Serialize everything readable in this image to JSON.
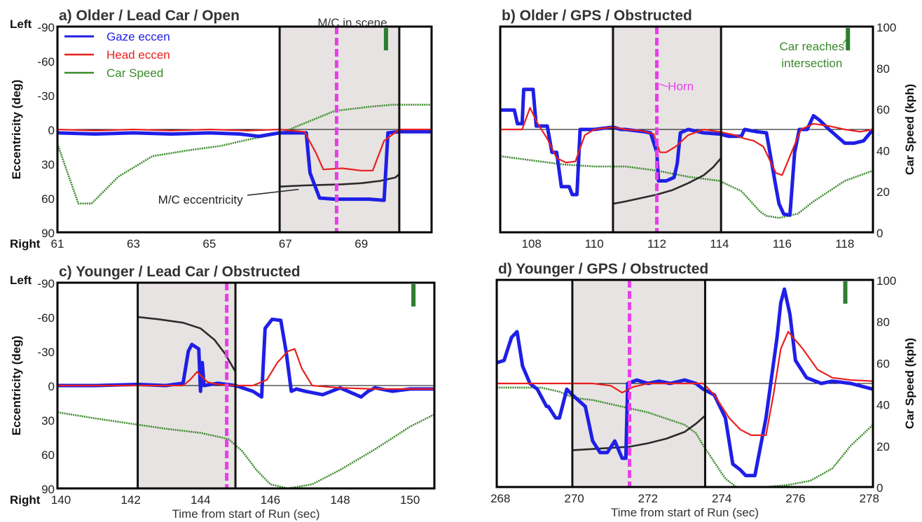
{
  "chart_data": [
    {
      "type": "line",
      "title": "a) Older / Lead Car / Open",
      "xlabel": "",
      "ylabel": "Eccentricity (deg)",
      "y2label": "",
      "y_top_label": "Left",
      "y_bottom_label": "Right",
      "xlim": [
        61,
        70.85
      ],
      "ylim_ecc": [
        -90,
        90
      ],
      "y_reversed": true,
      "y2lim": [
        0,
        100
      ],
      "xticks": [
        61,
        63,
        65,
        67,
        69
      ],
      "yticks": [
        -90,
        -60,
        -30,
        0,
        30,
        60,
        90
      ],
      "y2ticks": [],
      "shaded_region": [
        66.85,
        70.0
      ],
      "event_line_x": 68.35,
      "marker_x": 69.65,
      "series": [
        {
          "name": "Gaze eccen",
          "x": [
            61,
            62,
            63,
            64,
            65,
            65.8,
            66.3,
            66.85,
            67.55,
            67.65,
            67.9,
            68.3,
            68.6,
            69.2,
            69.6,
            69.7,
            70.0,
            70.85
          ],
          "y": [
            3,
            4,
            3,
            4,
            3,
            4,
            6,
            3,
            3,
            38,
            60,
            61,
            61,
            61,
            62,
            3,
            2,
            2
          ]
        },
        {
          "name": "Head eccen",
          "x": [
            61,
            62,
            63,
            64,
            65,
            66,
            66.85,
            67.5,
            67.8,
            68.0,
            68.5,
            69.0,
            69.3,
            69.6,
            70.0,
            70.85
          ],
          "y": [
            0,
            1,
            0,
            1,
            0,
            1,
            0,
            2,
            20,
            35,
            34,
            36,
            36,
            10,
            0,
            0
          ]
        },
        {
          "name": "Car Speed",
          "x": [
            61,
            61.55,
            61.9,
            62.6,
            63.5,
            64.5,
            65.3,
            66,
            66.85,
            67.5,
            68.3,
            69.2,
            69.8,
            70.85
          ],
          "y": [
            43,
            14,
            14,
            27,
            37,
            40,
            42,
            45,
            48,
            53,
            59,
            61,
            62,
            62
          ]
        },
        {
          "name": "M/C eccentricity",
          "x": [
            66.85,
            67.5,
            68,
            68.5,
            69,
            69.5,
            69.9,
            70.0
          ],
          "y": [
            50,
            49,
            48.5,
            48,
            47,
            45,
            42,
            39
          ]
        }
      ],
      "annotations": [
        "M/C in scene",
        "M/C eccentricity"
      ]
    },
    {
      "type": "line",
      "title": "b) Older / GPS / Obstructed",
      "xlabel": "",
      "ylabel": "",
      "y2label": "Car Speed (kph)",
      "y_top_label": "",
      "y_bottom_label": "",
      "xlim": [
        107.0,
        118.9
      ],
      "ylim_ecc": [
        -90,
        90
      ],
      "y_reversed": true,
      "y2lim": [
        0,
        100
      ],
      "xticks": [
        108,
        110,
        112,
        114,
        116,
        118
      ],
      "yticks": [],
      "y2ticks": [
        0,
        20,
        40,
        60,
        80,
        100
      ],
      "shaded_region": [
        110.6,
        114.05
      ],
      "event_line_x": 112.0,
      "marker_x": 118.1,
      "series": [
        {
          "name": "Gaze eccen",
          "x": [
            107,
            107.45,
            107.55,
            107.7,
            107.75,
            108.05,
            108.15,
            108.5,
            108.65,
            108.8,
            108.95,
            109.2,
            109.3,
            109.45,
            109.55,
            110.0,
            110.6,
            110.85,
            111.0,
            111.6,
            111.8,
            112.0,
            112.05,
            112.3,
            112.55,
            112.65,
            112.75,
            113.0,
            113.5,
            114.0,
            114.3,
            114.7,
            114.8,
            115.2,
            115.5,
            115.8,
            115.9,
            116.05,
            116.25,
            116.4,
            116.55,
            116.8,
            117.0,
            117.2,
            117.5,
            118.0,
            118.3,
            118.6,
            118.9
          ],
          "y": [
            -17,
            -17,
            -5,
            -5,
            -35,
            -35,
            -3,
            -3,
            20,
            20,
            50,
            50,
            57,
            57,
            0,
            0,
            -2,
            0,
            0,
            2,
            3,
            20,
            45,
            45,
            42,
            30,
            3,
            0,
            3,
            4,
            6,
            6,
            0,
            2,
            3,
            50,
            65,
            74,
            75,
            20,
            0,
            0,
            -12,
            -8,
            0,
            12,
            12,
            10,
            0
          ]
        },
        {
          "name": "Head eccen",
          "x": [
            107,
            107.7,
            107.95,
            108.2,
            108.5,
            108.8,
            109.1,
            109.4,
            109.7,
            110.0,
            110.6,
            111.0,
            111.5,
            111.9,
            112.1,
            112.3,
            112.6,
            113.0,
            113.5,
            114.0,
            114.5,
            114.8,
            115.1,
            115.4,
            115.8,
            116.0,
            116.3,
            116.6,
            117.0,
            117.5,
            118.0,
            118.5,
            118.9
          ],
          "y": [
            0,
            0,
            -19,
            -5,
            8,
            25,
            29,
            28,
            5,
            0,
            -2,
            0,
            1,
            4,
            20,
            20,
            15,
            5,
            0,
            2,
            5,
            8,
            10,
            15,
            38,
            40,
            20,
            0,
            -5,
            -3,
            0,
            2,
            0
          ]
        },
        {
          "name": "Car Speed",
          "x": [
            107,
            108,
            109,
            110,
            111,
            112,
            113,
            114,
            114.7,
            115.0,
            115.3,
            115.5,
            115.9,
            116.5,
            117.0,
            118.0,
            118.9
          ],
          "y": [
            37,
            35,
            33,
            32,
            32,
            30,
            27,
            25,
            20,
            15,
            10,
            8,
            7,
            9,
            15,
            25,
            30
          ]
        },
        {
          "name": "M/C eccentricity",
          "x": [
            110.6,
            111.0,
            111.5,
            112.0,
            112.5,
            113.0,
            113.5,
            113.8,
            114.05
          ],
          "y": [
            65,
            63,
            60,
            57,
            53,
            47,
            40,
            33,
            25
          ]
        }
      ],
      "annotations": [
        "Horn",
        "Car reaches intersection"
      ]
    },
    {
      "type": "line",
      "title": "c) Younger / Lead Car / Obstructed",
      "xlabel": "Time from start of Run (sec)",
      "ylabel": "Eccentricity (deg)",
      "y2label": "",
      "y_top_label": "Left",
      "y_bottom_label": "Right",
      "xlim": [
        139.9,
        150.7
      ],
      "ylim_ecc": [
        -90,
        90
      ],
      "y_reversed": true,
      "y2lim": [
        0,
        100
      ],
      "xticks": [
        140,
        142,
        144,
        146,
        148,
        150
      ],
      "yticks": [
        -90,
        -60,
        -30,
        0,
        30,
        60,
        90
      ],
      "y2ticks": [],
      "shaded_region": [
        142.2,
        145.0
      ],
      "event_line_x": 144.75,
      "marker_x": 150.1,
      "series": [
        {
          "name": "Gaze eccen",
          "x": [
            139.9,
            141,
            142.2,
            143.0,
            143.5,
            143.65,
            143.75,
            143.95,
            144.0,
            144.05,
            144.1,
            144.5,
            145.0,
            145.5,
            145.75,
            145.85,
            146.05,
            146.3,
            146.45,
            146.6,
            146.75,
            147.0,
            147.5,
            148.0,
            148.6,
            148.8,
            149.0,
            149.5,
            150.0,
            150.7
          ],
          "y": [
            0,
            0,
            -1,
            0,
            -2,
            -30,
            -36,
            -32,
            5,
            -20,
            0,
            -2,
            0,
            5,
            10,
            -50,
            -58,
            -57,
            -30,
            5,
            3,
            5,
            8,
            2,
            10,
            5,
            2,
            5,
            3,
            3
          ]
        },
        {
          "name": "Head eccen",
          "x": [
            139.9,
            141,
            142.2,
            143.0,
            143.5,
            143.7,
            143.9,
            144.2,
            144.5,
            145.0,
            145.5,
            145.9,
            146.2,
            146.5,
            146.7,
            146.9,
            147.2,
            148.0,
            149.0,
            150.7
          ],
          "y": [
            0,
            0,
            0,
            0,
            0,
            -5,
            -12,
            -3,
            -1,
            0,
            0,
            -5,
            -20,
            -30,
            -32,
            -15,
            0,
            2,
            3,
            3
          ]
        },
        {
          "name": "Car Speed",
          "x": [
            139.9,
            141,
            142.2,
            143,
            144,
            144.8,
            145.2,
            145.6,
            146.0,
            146.5,
            147.2,
            148,
            149,
            150,
            150.7
          ],
          "y": [
            37,
            34,
            31,
            29,
            27,
            24,
            18,
            9,
            2,
            0,
            2,
            9,
            19,
            30,
            36
          ]
        },
        {
          "name": "M/C eccentricity",
          "x": [
            142.2,
            142.8,
            143.5,
            144.0,
            144.4,
            144.7,
            145.0
          ],
          "y": [
            -60,
            -58,
            -55,
            -50,
            -40,
            -28,
            -12
          ]
        }
      ],
      "annotations": []
    },
    {
      "type": "line",
      "title": "d) Younger / GPS / Obstructed",
      "xlabel": "Time from start of Run (sec)",
      "ylabel": "",
      "y2label": "Car Speed (kph)",
      "y_top_label": "",
      "y_bottom_label": "",
      "xlim": [
        267.9,
        278.1
      ],
      "ylim_ecc": [
        -90,
        90
      ],
      "y_reversed": true,
      "y2lim": [
        0,
        100
      ],
      "xticks": [
        268,
        270,
        272,
        274,
        276,
        278
      ],
      "yticks": [],
      "y2ticks": [
        0,
        20,
        40,
        60,
        80,
        100
      ],
      "shaded_region": [
        269.95,
        273.55
      ],
      "event_line_x": 271.5,
      "marker_x": 277.35,
      "series": [
        {
          "name": "Gaze eccen",
          "x": [
            267.9,
            268.1,
            268.3,
            268.45,
            268.6,
            268.8,
            269.0,
            269.25,
            269.3,
            269.5,
            269.6,
            269.8,
            269.95,
            270.3,
            270.5,
            270.7,
            270.9,
            271.1,
            271.3,
            271.4,
            271.45,
            271.7,
            272.0,
            272.3,
            272.6,
            273.0,
            273.3,
            273.5,
            273.8,
            274.1,
            274.3,
            274.5,
            274.65,
            274.9,
            275.2,
            275.5,
            275.6,
            275.7,
            275.85,
            276.0,
            276.3,
            276.7,
            277.0,
            277.5,
            278.1
          ],
          "y": [
            -18,
            -20,
            -40,
            -45,
            -15,
            0,
            5,
            20,
            20,
            30,
            30,
            5,
            10,
            20,
            50,
            60,
            60,
            50,
            65,
            65,
            0,
            -3,
            0,
            -2,
            0,
            -3,
            0,
            5,
            10,
            30,
            70,
            75,
            80,
            80,
            30,
            -40,
            -70,
            -82,
            -60,
            -20,
            -5,
            0,
            -2,
            0,
            5
          ]
        },
        {
          "name": "Head eccen",
          "x": [
            267.9,
            269,
            269.95,
            270.5,
            271.0,
            271.3,
            271.6,
            272.0,
            272.5,
            273.0,
            273.5,
            273.8,
            274.2,
            274.5,
            274.8,
            275.2,
            275.4,
            275.6,
            275.8,
            276.2,
            276.6,
            277.0,
            277.5,
            278.1
          ],
          "y": [
            0,
            0,
            0,
            0,
            2,
            8,
            3,
            0,
            0,
            0,
            0,
            10,
            30,
            40,
            45,
            45,
            10,
            -30,
            -45,
            -30,
            -12,
            -5,
            -3,
            -2
          ]
        },
        {
          "name": "Car Speed",
          "x": [
            267.9,
            268.5,
            269.1,
            269.6,
            270.0,
            270.5,
            271.0,
            271.5,
            272.0,
            272.5,
            273.0,
            273.3,
            273.5,
            273.8,
            274.1,
            274.4,
            274.7,
            275.2,
            275.8,
            276.4,
            277.0,
            277.5,
            278.1
          ],
          "y": [
            48,
            48,
            48,
            46,
            43,
            42,
            40,
            38,
            36,
            33,
            30,
            26,
            20,
            12,
            4,
            0,
            0,
            0,
            1,
            3,
            9,
            20,
            30
          ]
        },
        {
          "name": "M/C eccentricity",
          "x": [
            269.95,
            270.5,
            271.0,
            271.5,
            272.0,
            272.5,
            273.0,
            273.3,
            273.55
          ],
          "y": [
            58,
            57,
            56,
            55,
            52,
            48,
            42,
            35,
            28
          ]
        }
      ],
      "annotations": []
    }
  ]
}
